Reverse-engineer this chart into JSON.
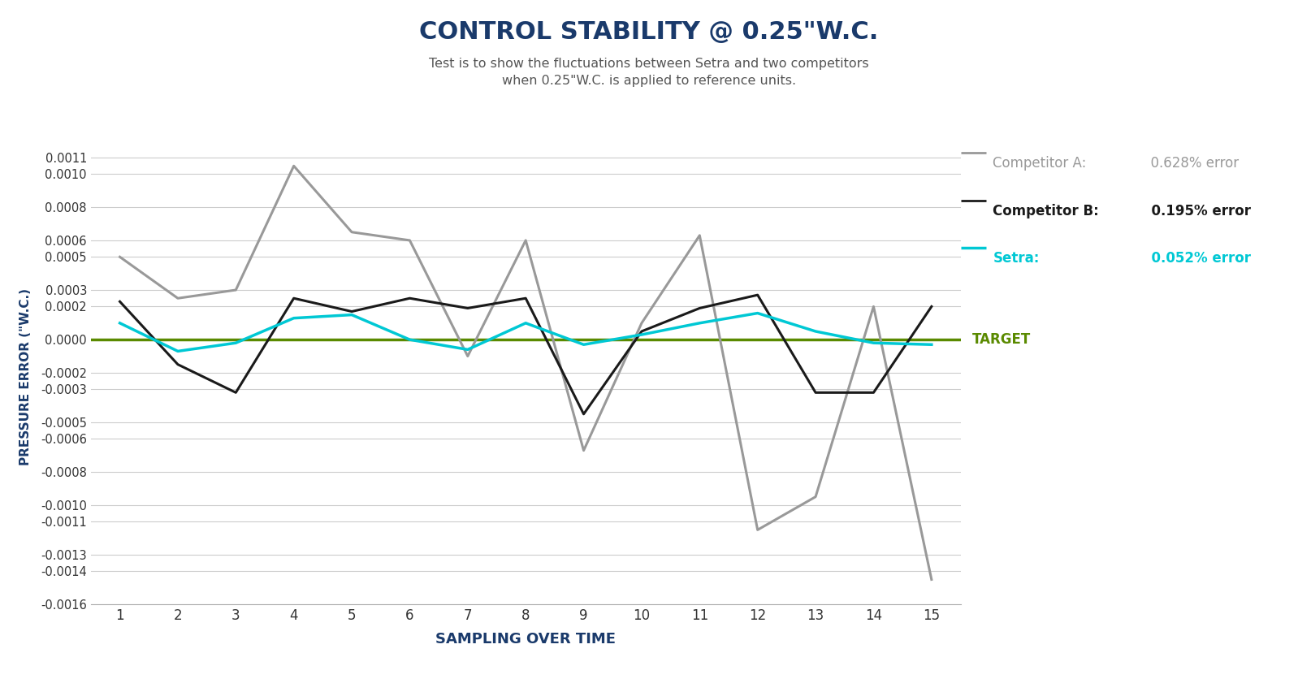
{
  "title": "CONTROL STABILITY @ 0.25\"W.C.",
  "subtitle": "Test is to show the fluctuations between Setra and two competitors\nwhen 0.25\"W.C. is applied to reference units.",
  "xlabel": "SAMPLING OVER TIME",
  "ylabel": "PRESSURE ERROR (\"W.C.)",
  "x": [
    1,
    2,
    3,
    4,
    5,
    6,
    7,
    8,
    9,
    10,
    11,
    12,
    13,
    14,
    15
  ],
  "competitor_a": [
    0.0005,
    0.00025,
    0.0003,
    0.00105,
    0.00065,
    0.0006,
    -0.0001,
    0.0006,
    -0.00067,
    0.0001,
    0.00063,
    -0.00115,
    -0.00095,
    0.0002,
    -0.00145
  ],
  "competitor_b": [
    0.00023,
    -0.00015,
    -0.00032,
    0.00025,
    0.00017,
    0.00025,
    0.00019,
    0.00025,
    -0.00045,
    5e-05,
    0.00019,
    0.00027,
    -0.00032,
    -0.00032,
    0.0002
  ],
  "setra": [
    0.0001,
    -7e-05,
    -2e-05,
    0.00013,
    0.00015,
    0.0,
    -6e-05,
    0.0001,
    -3e-05,
    3e-05,
    0.0001,
    0.00016,
    5e-05,
    -2e-05,
    -3e-05
  ],
  "target_line": 0.0,
  "ylim_min": -0.0016,
  "ylim_max": 0.00115,
  "color_a": "#999999",
  "color_b": "#1a1a1a",
  "color_setra": "#00c8d4",
  "color_target": "#5a8a00",
  "legend_a_label": "Competitor A:",
  "legend_a_value": "  0.628% error",
  "legend_b_label": "Competitor B:",
  "legend_b_value": "  0.195% error",
  "legend_setra_label": "Setra:",
  "legend_setra_value": "  0.052% error",
  "target_label": "TARGET",
  "background_color": "#ffffff",
  "grid_color": "#cccccc",
  "title_color": "#1a3a6b",
  "subtitle_color": "#555555",
  "xlabel_color": "#1a3a6b",
  "ylabel_color": "#1a3a6b",
  "shown_ticks": [
    0.0011,
    0.001,
    0.0008,
    0.0006,
    0.0005,
    0.0003,
    0.0002,
    0.0,
    -0.0002,
    -0.0003,
    -0.0005,
    -0.0006,
    -0.0008,
    -0.001,
    -0.0011,
    -0.0013,
    -0.0014,
    -0.0016
  ]
}
